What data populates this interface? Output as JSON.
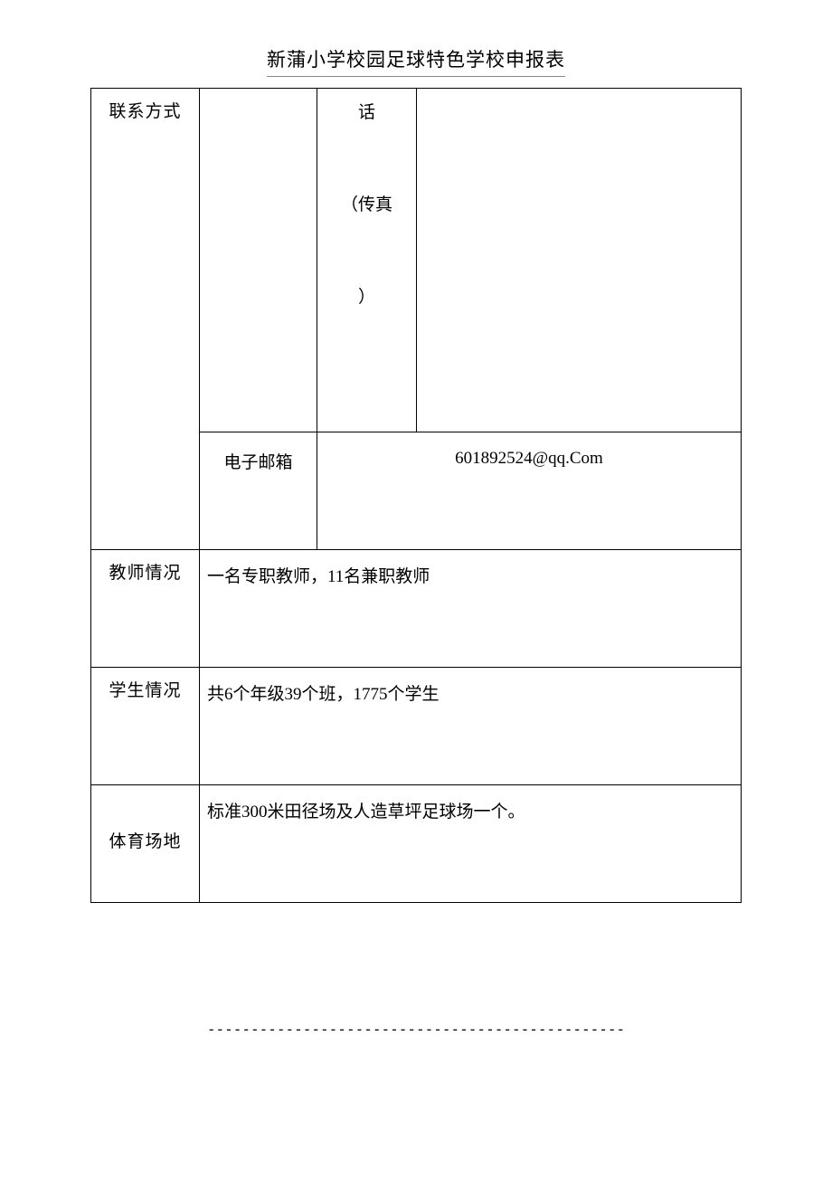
{
  "title": "新蒲小学校园足球特色学校申报表",
  "rows": {
    "contact": {
      "label": "联系方式",
      "sub_blank": "",
      "phone_label_1": "话",
      "fax_open": "（传真",
      "fax_close": "）",
      "phone_value": "",
      "email_label": "电子邮箱",
      "email_value": "601892524@qq.Com"
    },
    "teacher": {
      "label": "教师情况",
      "value": "一名专职教师，11名兼职教师"
    },
    "student": {
      "label": "学生情况",
      "value": "共6个年级39个班，1775个学生"
    },
    "field": {
      "label": "体育场地",
      "value": "标准300米田径场及人造草坪足球场一个。"
    }
  },
  "footer_dashes": "------------------------------------------------",
  "colors": {
    "text": "#000000",
    "border": "#000000",
    "rule": "#cccccc",
    "background": "#ffffff"
  },
  "typography": {
    "title_fontsize": 21,
    "body_fontsize": 19,
    "font_family": "SimSun"
  }
}
